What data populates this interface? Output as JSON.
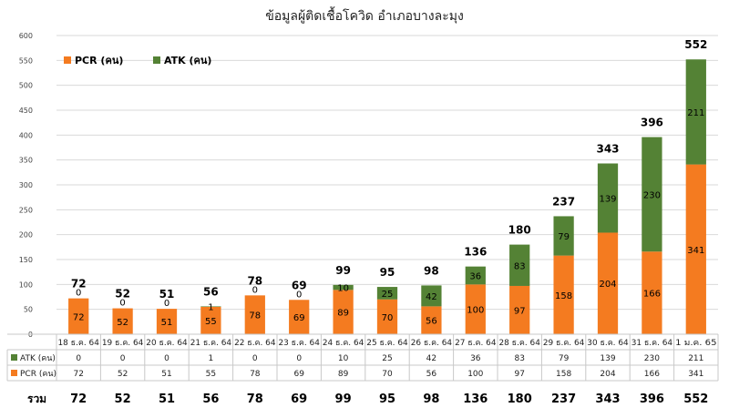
{
  "chart_data": {
    "type": "bar",
    "stacked": true,
    "title": "ข้อมูลผู้ติดเชื้อโควิด อำเภอบางละมุง",
    "categories": [
      "18 ธ.ค. 64",
      "19 ธ.ค. 64",
      "20 ธ.ค. 64",
      "21 ธ.ค. 64",
      "22 ธ.ค. 64",
      "23 ธ.ค. 64",
      "24 ธ.ค. 64",
      "25 ธ.ค. 64",
      "26 ธ.ค. 64",
      "27 ธ.ค. 64",
      "28 ธ.ค. 64",
      "29 ธ.ค. 64",
      "30 ธ.ค. 64",
      "31 ธ.ค. 64",
      "1 ม.ค. 65"
    ],
    "series": [
      {
        "name": "PCR (คน)",
        "color": "#F47B20",
        "values": [
          72,
          52,
          51,
          55,
          78,
          69,
          89,
          70,
          56,
          100,
          97,
          158,
          204,
          166,
          341
        ]
      },
      {
        "name": "ATK (คน)",
        "color": "#548235",
        "values": [
          0,
          0,
          0,
          1,
          0,
          0,
          10,
          25,
          42,
          36,
          83,
          79,
          139,
          230,
          211
        ]
      }
    ],
    "totals": [
      72,
      52,
      51,
      56,
      78,
      69,
      99,
      95,
      98,
      136,
      180,
      237,
      343,
      396,
      552
    ],
    "totals_label": "รวม",
    "ylim": [
      0,
      600
    ],
    "yticks": [
      0,
      50,
      100,
      150,
      200,
      250,
      300,
      350,
      400,
      450,
      500,
      550,
      600
    ],
    "legend_position": "top-left",
    "data_table": true,
    "grid": true
  }
}
